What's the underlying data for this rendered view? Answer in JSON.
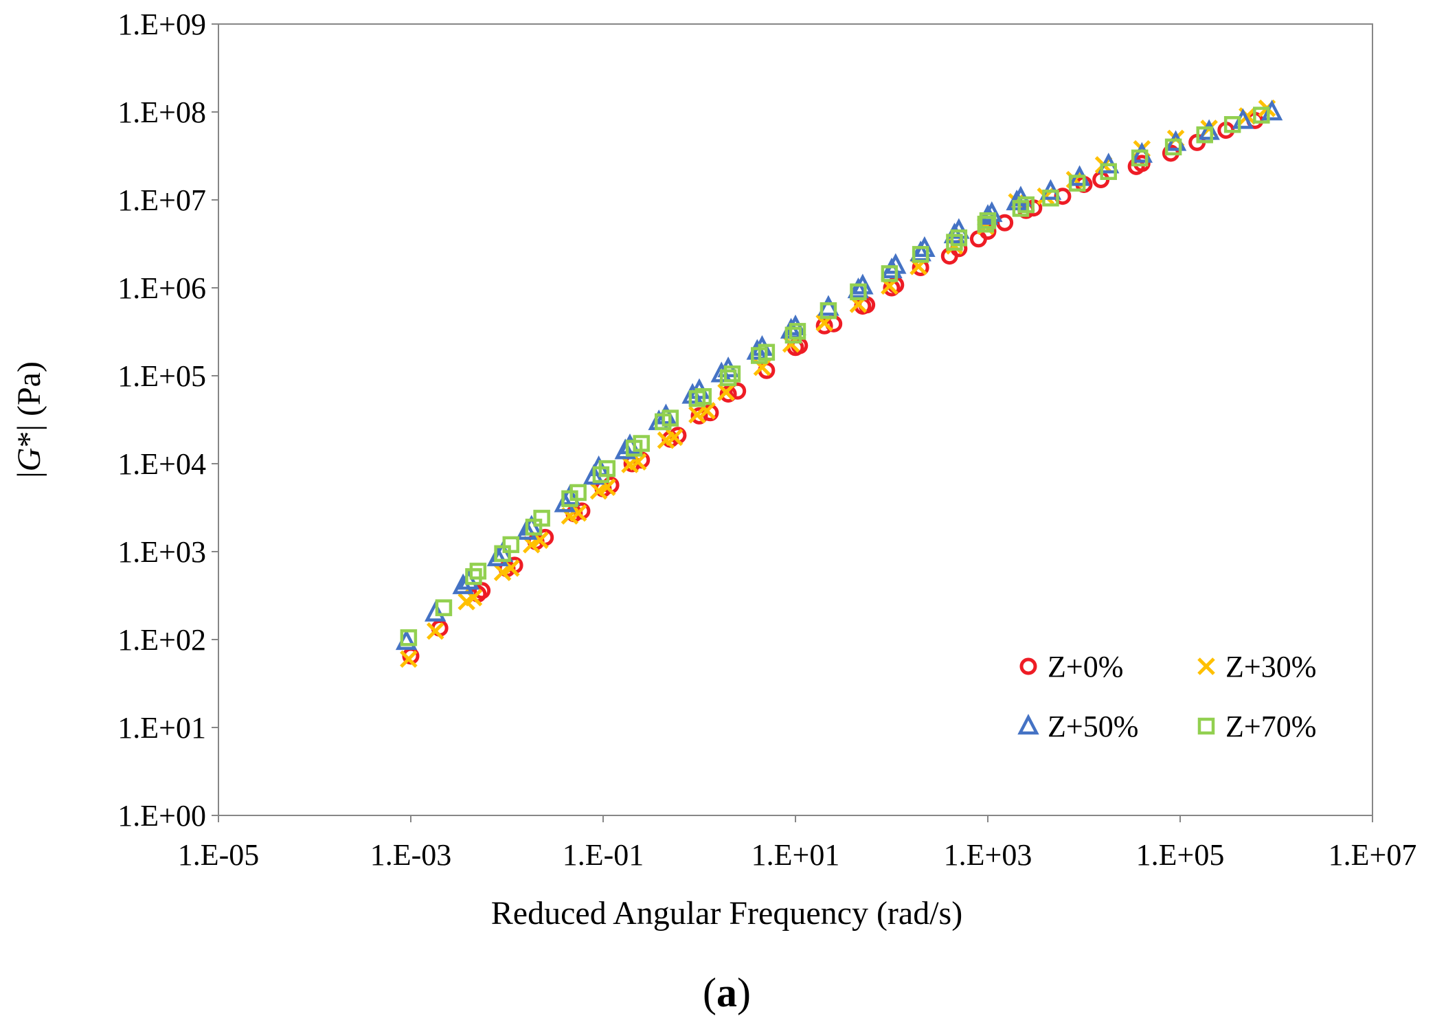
{
  "chart_data": {
    "type": "scatter",
    "title": "",
    "xlabel": "Reduced  Angular Frequency (rad/s)",
    "ylabel_parts": [
      "|",
      "G",
      "*| (Pa)"
    ],
    "x_scale": "log",
    "y_scale": "log",
    "xlim": [
      1e-05,
      10000000.0
    ],
    "ylim": [
      1,
      1000000000.0
    ],
    "x_ticks": [
      1e-05,
      0.001,
      0.1,
      10.0,
      1000.0,
      100000.0,
      10000000.0
    ],
    "y_ticks": [
      1,
      10,
      100,
      1000,
      10000,
      100000,
      1000000,
      10000000,
      100000000,
      1000000000
    ],
    "x_tick_labels": [
      "1.E-05",
      "1.E-03",
      "1.E-01",
      "1.E+01",
      "1.E+03",
      "1.E+05",
      "1.E+07"
    ],
    "y_tick_labels": [
      "1.E+00",
      "1.E+01",
      "1.E+02",
      "1.E+03",
      "1.E+04",
      "1.E+05",
      "1.E+06",
      "1.E+07",
      "1.E+08",
      "1.E+09"
    ],
    "grid": false,
    "legend_position": "bottom-right",
    "series": [
      {
        "name": "Z+0%",
        "marker": "circle",
        "color": "#ee1c25",
        "points": [
          [
            0.001,
            65
          ],
          [
            0.002,
            135
          ],
          [
            0.005,
            330
          ],
          [
            0.0055,
            360
          ],
          [
            0.01,
            640
          ],
          [
            0.012,
            700
          ],
          [
            0.02,
            1300
          ],
          [
            0.025,
            1450
          ],
          [
            0.05,
            2700
          ],
          [
            0.06,
            2900
          ],
          [
            0.1,
            5200
          ],
          [
            0.12,
            5700
          ],
          [
            0.2,
            10000
          ],
          [
            0.25,
            11000
          ],
          [
            0.5,
            19000
          ],
          [
            0.6,
            21000
          ],
          [
            1.0,
            35000
          ],
          [
            1.3,
            38000
          ],
          [
            2.0,
            62000
          ],
          [
            2.5,
            67000
          ],
          [
            5.0,
            115000
          ],
          [
            10,
            210000
          ],
          [
            11,
            220000
          ],
          [
            20,
            370000
          ],
          [
            25,
            390000
          ],
          [
            50,
            620000
          ],
          [
            55,
            640000
          ],
          [
            100,
            1000000
          ],
          [
            110,
            1080000
          ],
          [
            200,
            1700000
          ],
          [
            400,
            2300000
          ],
          [
            500,
            2800000
          ],
          [
            800,
            3600000
          ],
          [
            1000,
            4400000
          ],
          [
            1500,
            5500000
          ],
          [
            2500,
            7600000
          ],
          [
            3000,
            8100000
          ],
          [
            6000,
            11000000
          ],
          [
            10000,
            15000000
          ],
          [
            15000,
            17000000
          ],
          [
            35000,
            24000000
          ],
          [
            40000,
            26000000
          ],
          [
            80000,
            34000000
          ],
          [
            150000,
            45000000
          ],
          [
            300000,
            62000000
          ],
          [
            600000,
            80000000
          ]
        ]
      },
      {
        "name": "Z+30%",
        "marker": "x",
        "color": "#ffc000",
        "points": [
          [
            0.00095,
            60
          ],
          [
            0.0018,
            125
          ],
          [
            0.0038,
            270
          ],
          [
            0.0045,
            300
          ],
          [
            0.009,
            580
          ],
          [
            0.011,
            650
          ],
          [
            0.018,
            1200
          ],
          [
            0.022,
            1350
          ],
          [
            0.045,
            2550
          ],
          [
            0.055,
            2750
          ],
          [
            0.09,
            4900
          ],
          [
            0.11,
            5400
          ],
          [
            0.19,
            9800
          ],
          [
            0.23,
            10500
          ],
          [
            0.45,
            18500
          ],
          [
            0.55,
            20000
          ],
          [
            0.95,
            36000
          ],
          [
            1.2,
            40000
          ],
          [
            1.9,
            65000
          ],
          [
            4.5,
            125000
          ],
          [
            9,
            230000
          ],
          [
            20,
            400000
          ],
          [
            45,
            650000
          ],
          [
            95,
            1050000
          ],
          [
            190,
            1750000
          ],
          [
            450,
            3000000
          ],
          [
            950,
            5000000
          ],
          [
            2000,
            9500000
          ],
          [
            4000,
            11000000
          ],
          [
            8000,
            17000000
          ],
          [
            16000,
            25000000
          ],
          [
            40000,
            38000000
          ],
          [
            90000,
            50000000
          ],
          [
            200000,
            65000000
          ],
          [
            500000,
            90000000
          ],
          [
            800000,
            110000000
          ]
        ]
      },
      {
        "name": "Z+50%",
        "marker": "triangle",
        "color": "#4472c4",
        "points": [
          [
            0.0009,
            95
          ],
          [
            0.0018,
            200
          ],
          [
            0.0035,
            410
          ],
          [
            0.004,
            460
          ],
          [
            0.008,
            850
          ],
          [
            0.009,
            950
          ],
          [
            0.016,
            1700
          ],
          [
            0.018,
            1900
          ],
          [
            0.04,
            3500
          ],
          [
            0.045,
            4200
          ],
          [
            0.08,
            7200
          ],
          [
            0.09,
            9000
          ],
          [
            0.17,
            14000
          ],
          [
            0.19,
            16000
          ],
          [
            0.38,
            30000
          ],
          [
            0.45,
            35000
          ],
          [
            0.85,
            60000
          ],
          [
            1.0,
            68000
          ],
          [
            1.7,
            105000
          ],
          [
            2.0,
            120000
          ],
          [
            4.0,
            190000
          ],
          [
            4.5,
            210000
          ],
          [
            9,
            330000
          ],
          [
            10,
            360000
          ],
          [
            22,
            600000
          ],
          [
            45,
            950000
          ],
          [
            50,
            1050000
          ],
          [
            100,
            1600000
          ],
          [
            110,
            1800000
          ],
          [
            200,
            2500000
          ],
          [
            220,
            2800000
          ],
          [
            450,
            4000000
          ],
          [
            500,
            4500000
          ],
          [
            1000,
            6500000
          ],
          [
            1100,
            7000000
          ],
          [
            2000,
            9500000
          ],
          [
            2200,
            10500000
          ],
          [
            4500,
            12500000
          ],
          [
            9000,
            18000000
          ],
          [
            18000,
            25000000
          ],
          [
            40000,
            33000000
          ],
          [
            90000,
            45000000
          ],
          [
            200000,
            60000000
          ],
          [
            450000,
            80000000
          ],
          [
            900000,
            100000000
          ]
        ]
      },
      {
        "name": "Z+70%",
        "marker": "square",
        "color": "#92d050",
        "points": [
          [
            0.00095,
            105
          ],
          [
            0.0022,
            230
          ],
          [
            0.0045,
            520
          ],
          [
            0.005,
            600
          ],
          [
            0.009,
            950
          ],
          [
            0.011,
            1200
          ],
          [
            0.019,
            1900
          ],
          [
            0.023,
            2400
          ],
          [
            0.045,
            4000
          ],
          [
            0.055,
            4700
          ],
          [
            0.095,
            7500
          ],
          [
            0.11,
            8800
          ],
          [
            0.21,
            15000
          ],
          [
            0.25,
            17000
          ],
          [
            0.42,
            30000
          ],
          [
            0.5,
            33000
          ],
          [
            0.95,
            55000
          ],
          [
            1.1,
            58000
          ],
          [
            2.0,
            95000
          ],
          [
            2.2,
            105000
          ],
          [
            4.2,
            170000
          ],
          [
            5.0,
            185000
          ],
          [
            9.5,
            290000
          ],
          [
            10.5,
            320000
          ],
          [
            22,
            550000
          ],
          [
            45,
            900000
          ],
          [
            95,
            1450000
          ],
          [
            200,
            2400000
          ],
          [
            450,
            3300000
          ],
          [
            500,
            3700000
          ],
          [
            950,
            5300000
          ],
          [
            1000,
            5800000
          ],
          [
            2200,
            8000000
          ],
          [
            2500,
            8800000
          ],
          [
            4500,
            10500000
          ],
          [
            8500,
            15500000
          ],
          [
            18000,
            21000000
          ],
          [
            38000,
            30000000
          ],
          [
            85000,
            40000000
          ],
          [
            180000,
            55000000
          ],
          [
            350000,
            72000000
          ],
          [
            700000,
            92000000
          ]
        ]
      }
    ]
  },
  "panel_label": {
    "open": "(",
    "letter": "a",
    "close": ")"
  }
}
